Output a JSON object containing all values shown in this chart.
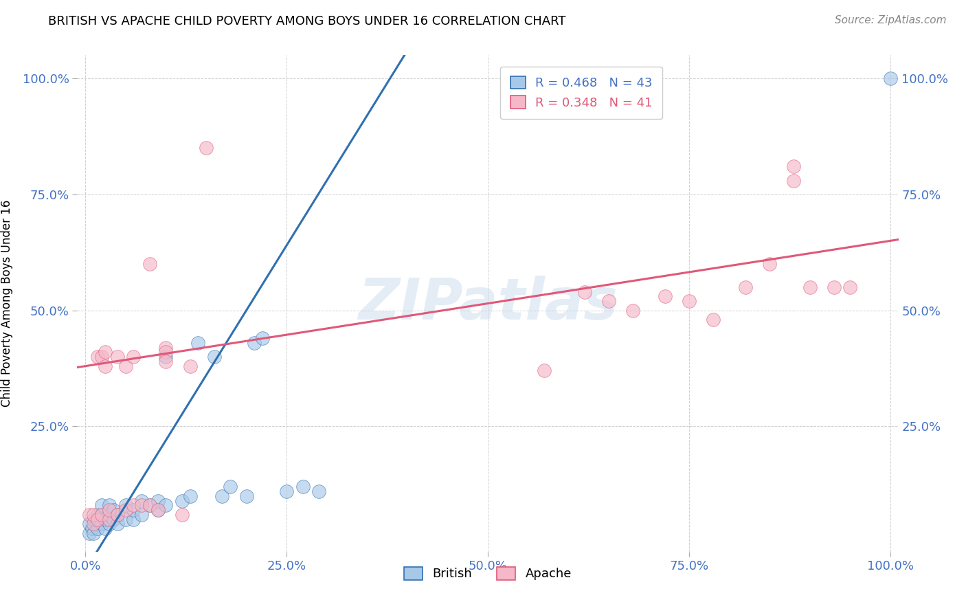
{
  "title": "BRITISH VS APACHE CHILD POVERTY AMONG BOYS UNDER 16 CORRELATION CHART",
  "source": "Source: ZipAtlas.com",
  "ylabel": "Child Poverty Among Boys Under 16",
  "xlabel": "",
  "xlim": [
    -0.01,
    1.01
  ],
  "ylim": [
    -0.02,
    1.05
  ],
  "xticks": [
    0.0,
    0.25,
    0.5,
    0.75,
    1.0
  ],
  "yticks": [
    0.25,
    0.5,
    0.75,
    1.0
  ],
  "xticklabels": [
    "0.0%",
    "25.0%",
    "50.0%",
    "75.0%",
    "100.0%"
  ],
  "yticklabels": [
    "25.0%",
    "50.0%",
    "75.0%",
    "100.0%"
  ],
  "watermark_text": "ZIPatlas",
  "british_color": "#a8c8e8",
  "apache_color": "#f4b8c8",
  "british_line_color": "#3070b0",
  "apache_line_color": "#e05878",
  "british_R": 0.468,
  "british_N": 43,
  "apache_R": 0.348,
  "apache_N": 41,
  "british_x": [
    0.005,
    0.005,
    0.008,
    0.01,
    0.01,
    0.015,
    0.015,
    0.02,
    0.02,
    0.02,
    0.025,
    0.025,
    0.03,
    0.03,
    0.03,
    0.035,
    0.035,
    0.04,
    0.04,
    0.05,
    0.05,
    0.06,
    0.06,
    0.07,
    0.07,
    0.08,
    0.09,
    0.09,
    0.1,
    0.1,
    0.12,
    0.13,
    0.14,
    0.16,
    0.17,
    0.18,
    0.2,
    0.21,
    0.22,
    0.25,
    0.27,
    0.29,
    1.0
  ],
  "british_y": [
    0.02,
    0.04,
    0.03,
    0.02,
    0.05,
    0.03,
    0.06,
    0.04,
    0.06,
    0.08,
    0.03,
    0.05,
    0.04,
    0.06,
    0.08,
    0.05,
    0.07,
    0.04,
    0.06,
    0.05,
    0.08,
    0.05,
    0.07,
    0.06,
    0.09,
    0.08,
    0.07,
    0.09,
    0.4,
    0.08,
    0.09,
    0.1,
    0.43,
    0.4,
    0.1,
    0.12,
    0.1,
    0.43,
    0.44,
    0.11,
    0.12,
    0.11,
    1.0
  ],
  "apache_x": [
    0.005,
    0.01,
    0.01,
    0.015,
    0.015,
    0.02,
    0.02,
    0.025,
    0.025,
    0.03,
    0.03,
    0.04,
    0.04,
    0.05,
    0.05,
    0.06,
    0.06,
    0.07,
    0.08,
    0.08,
    0.09,
    0.1,
    0.1,
    0.1,
    0.12,
    0.13,
    0.15,
    0.57,
    0.62,
    0.65,
    0.68,
    0.72,
    0.75,
    0.78,
    0.82,
    0.85,
    0.88,
    0.88,
    0.9,
    0.93,
    0.95
  ],
  "apache_y": [
    0.06,
    0.04,
    0.06,
    0.05,
    0.4,
    0.4,
    0.06,
    0.38,
    0.41,
    0.05,
    0.07,
    0.4,
    0.06,
    0.38,
    0.07,
    0.4,
    0.08,
    0.08,
    0.6,
    0.08,
    0.07,
    0.42,
    0.41,
    0.39,
    0.06,
    0.38,
    0.85,
    0.37,
    0.54,
    0.52,
    0.5,
    0.53,
    0.52,
    0.48,
    0.55,
    0.6,
    0.78,
    0.81,
    0.55,
    0.55,
    0.55
  ],
  "grid_color": "#d0d0d0",
  "background_color": "#ffffff",
  "tick_color": "#4472c4",
  "title_color": "#000000",
  "legend_R_color_british": "#4472c4",
  "legend_R_color_apache": "#e05878",
  "british_line_slope": 2.8,
  "british_line_intercept": -0.06,
  "apache_line_slope": 0.27,
  "apache_line_intercept": 0.38
}
